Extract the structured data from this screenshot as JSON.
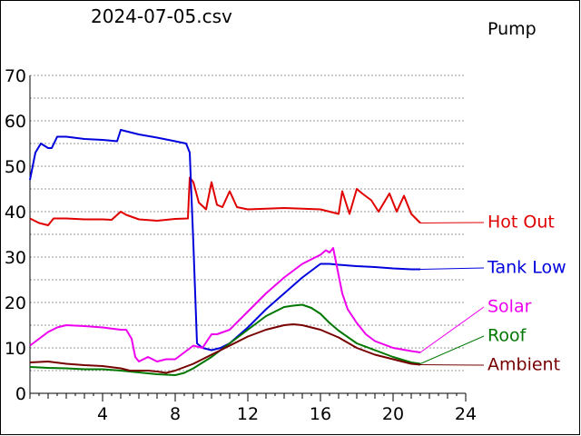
{
  "header": {
    "file_title": "2024-07-05.csv",
    "pump_label": "Pump"
  },
  "chart_data": {
    "type": "line",
    "title": "2024-07-05.csv",
    "xlabel": "",
    "ylabel": "",
    "xlim": [
      0,
      24
    ],
    "ylim": [
      0,
      70
    ],
    "xticks": [
      4,
      8,
      12,
      16,
      20,
      24
    ],
    "yticks": [
      0,
      10,
      20,
      30,
      40,
      50,
      60,
      70
    ],
    "grid": "horizontal dashed every 5",
    "legend": "right, labels at line ends",
    "series": [
      {
        "name": "Hot Out",
        "color": "#e00000",
        "x": [
          0,
          0.5,
          1,
          1.3,
          1.5,
          2,
          3,
          4,
          4.5,
          5,
          5.3,
          6,
          7,
          8,
          8.7,
          8.8,
          9,
          9.3,
          9.7,
          10,
          10.3,
          10.6,
          11,
          11.4,
          12,
          14,
          16,
          17,
          17.2,
          17.6,
          18,
          18.3,
          18.8,
          19.2,
          19.8,
          20.2,
          20.6,
          21,
          21.5
        ],
        "values": [
          38.5,
          37.5,
          37,
          38.5,
          38.5,
          38.5,
          38.3,
          38.3,
          38.2,
          40,
          39.3,
          38.3,
          38,
          38.4,
          38.5,
          47.5,
          46.5,
          42,
          40.5,
          46.5,
          41.5,
          41,
          44.5,
          41,
          40.5,
          40.8,
          40.5,
          39.5,
          44.5,
          39.5,
          45,
          44,
          42.5,
          40,
          44,
          40,
          43.5,
          39.5,
          37.5
        ]
      },
      {
        "name": "Tank Low",
        "color": "#0000dd",
        "x": [
          0,
          0.3,
          0.6,
          1,
          1.2,
          1.5,
          2,
          3,
          4,
          4.8,
          5,
          5.5,
          6,
          7,
          8,
          8.6,
          8.8,
          9,
          9.2,
          9.5,
          10,
          10.5,
          11,
          12,
          13,
          14,
          15,
          16,
          16.5,
          17,
          18,
          19,
          20,
          21,
          21.5
        ],
        "values": [
          47,
          53,
          55,
          54,
          54,
          56.5,
          56.5,
          56,
          55.8,
          55.5,
          58,
          57.5,
          57,
          56.3,
          55.5,
          55,
          53,
          33,
          11,
          10,
          9.5,
          10,
          11,
          14.5,
          18.5,
          22,
          25.5,
          28.5,
          28.5,
          28.3,
          28,
          27.8,
          27.5,
          27.3,
          27.3
        ]
      },
      {
        "name": "Solar",
        "color": "#ee00ee",
        "x": [
          0,
          0.5,
          1,
          1.5,
          2,
          3,
          4,
          5,
          5.3,
          5.6,
          5.8,
          6,
          6.5,
          7,
          7.5,
          8,
          8.5,
          9,
          9.5,
          10,
          10.3,
          11,
          12,
          13,
          14,
          15,
          16,
          16.3,
          16.5,
          16.7,
          16.9,
          17.2,
          17.5,
          18,
          18.5,
          19,
          20,
          21,
          21.5
        ],
        "values": [
          10.5,
          12,
          13.5,
          14.5,
          15,
          14.8,
          14.5,
          14,
          14,
          12,
          8,
          7,
          8,
          7,
          7.5,
          7.5,
          9,
          10.5,
          10,
          13,
          13,
          14,
          18,
          22,
          25.5,
          28.5,
          30.5,
          31.5,
          31,
          32,
          28,
          22,
          18.5,
          15.5,
          13,
          11.5,
          10,
          9.3,
          9
        ]
      },
      {
        "name": "Roof",
        "color": "#007700",
        "x": [
          0,
          1,
          2,
          3,
          4,
          5,
          6,
          7,
          8,
          8.5,
          9,
          10,
          11,
          12,
          13,
          14,
          14.5,
          15,
          15.5,
          16,
          16.5,
          17,
          18,
          19,
          20,
          21,
          21.5
        ],
        "values": [
          5.8,
          5.6,
          5.5,
          5.3,
          5.3,
          5,
          4.6,
          4.2,
          4,
          4.5,
          5.5,
          8,
          11,
          14,
          17,
          19,
          19.3,
          19.5,
          18.8,
          17.5,
          15.5,
          13.8,
          11,
          9.5,
          8,
          6.8,
          6.5
        ]
      },
      {
        "name": "Ambient",
        "color": "#770000",
        "x": [
          0,
          1,
          2,
          3,
          4,
          5,
          5.5,
          6,
          6.5,
          7,
          7.5,
          8,
          9,
          10,
          11,
          12,
          13,
          14,
          14.5,
          15,
          16,
          17,
          18,
          19,
          20,
          21,
          21.5
        ],
        "values": [
          6.8,
          7,
          6.5,
          6.2,
          6,
          5.5,
          5,
          5,
          5,
          4.8,
          4.5,
          5,
          6.5,
          8.5,
          10.5,
          12.5,
          14,
          15,
          15.2,
          15,
          14,
          12.3,
          10,
          8.5,
          7.5,
          6.5,
          6.3
        ]
      }
    ],
    "labels": [
      {
        "text": "Hot Out",
        "color": "#e00000"
      },
      {
        "text": "Tank Low",
        "color": "#0000dd"
      },
      {
        "text": "Solar",
        "color": "#ee00ee"
      },
      {
        "text": "Roof",
        "color": "#007700"
      },
      {
        "text": "Ambient",
        "color": "#770000"
      }
    ]
  }
}
